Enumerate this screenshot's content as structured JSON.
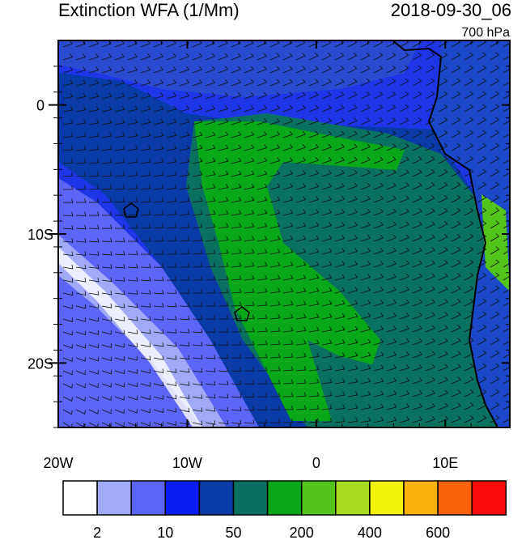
{
  "map": {
    "title": "Extinction WFA (1/Mm)",
    "date": "2018-09-30_06",
    "level": "700 hPa",
    "xlim": [
      -20,
      15
    ],
    "ylim": [
      -25,
      5
    ],
    "xticks": [
      {
        "value": -20,
        "label": "20W"
      },
      {
        "value": -10,
        "label": "10W"
      },
      0,
      {
        "value": 10,
        "label": "10E"
      }
    ],
    "yticks": [
      0,
      {
        "value": -10,
        "label": "10S"
      },
      {
        "value": -20,
        "label": "20S"
      }
    ],
    "colorbar": {
      "colors": [
        "#ffffff",
        "#a2aaf8",
        "#5c66f6",
        "#0a1cf4",
        "#0a3aa8",
        "#0a7060",
        "#08a818",
        "#52c41a",
        "#a8dc20",
        "#f2f20a",
        "#f8b00a",
        "#f8620a",
        "#f80c0c"
      ],
      "levels": [
        2,
        10,
        50,
        200,
        400,
        600
      ]
    }
  }
}
